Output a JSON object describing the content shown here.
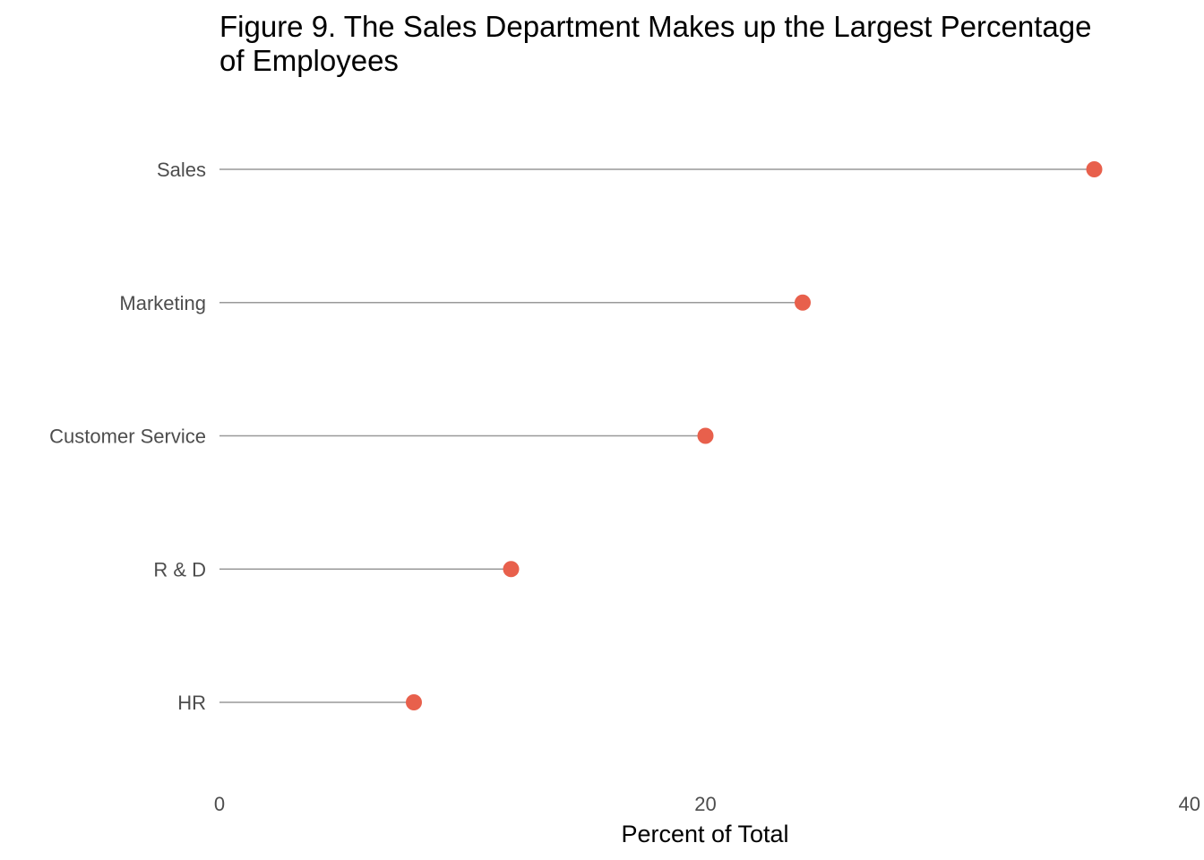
{
  "chart_data": {
    "type": "lollipop",
    "title": "Figure 9. The Sales Department Makes up the Largest Percentage of Employees",
    "title_lines": [
      "Figure 9. The Sales Department Makes up the Largest Percentage",
      "of Employees"
    ],
    "xlabel": "Percent of Total",
    "ylabel": "",
    "categories": [
      "Sales",
      "Marketing",
      "Customer Service",
      "R & D",
      "HR"
    ],
    "values": [
      36,
      24,
      20,
      12,
      8
    ],
    "xlim": [
      0,
      40
    ],
    "x_ticks": [
      0,
      20,
      40
    ],
    "x_tick_labels": [
      "0",
      "20",
      "40"
    ],
    "grid": false,
    "legend": "none",
    "colors": {
      "point": "#E8604C",
      "stem": "#999999"
    }
  }
}
